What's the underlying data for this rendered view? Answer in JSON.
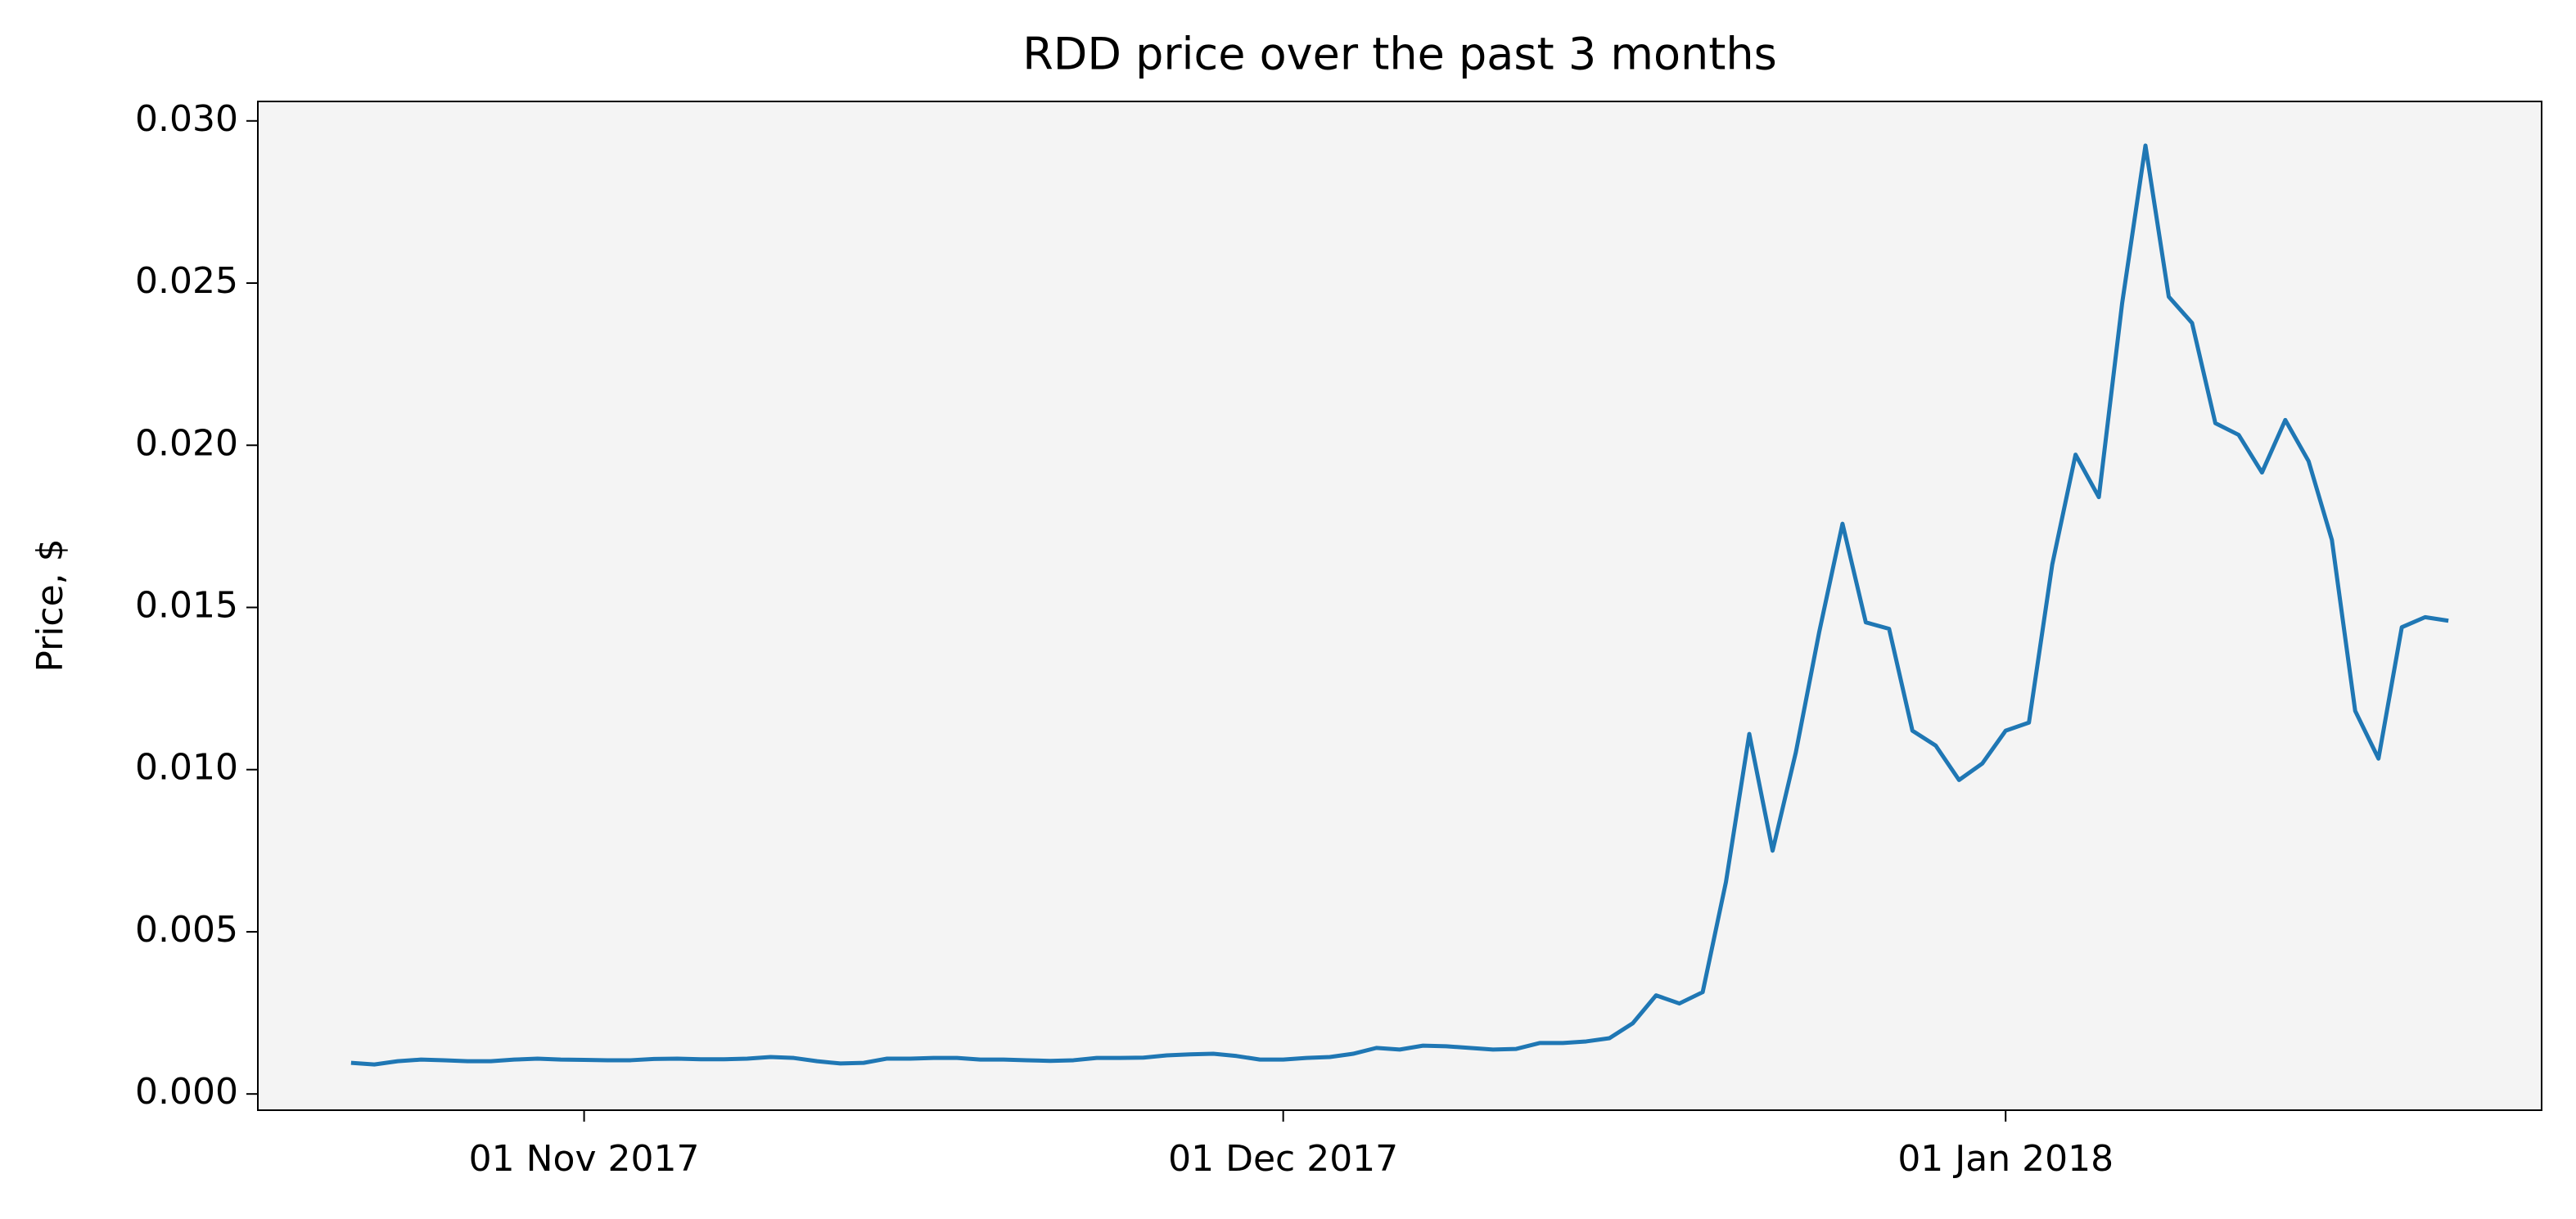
{
  "chart_data": {
    "type": "line",
    "title": "RDD price over the past 3 months",
    "y_label": "Price, $",
    "x": [
      "2017-10-22",
      "2017-10-23",
      "2017-10-24",
      "2017-10-25",
      "2017-10-26",
      "2017-10-27",
      "2017-10-28",
      "2017-10-29",
      "2017-10-30",
      "2017-10-31",
      "2017-11-01",
      "2017-11-02",
      "2017-11-03",
      "2017-11-04",
      "2017-11-05",
      "2017-11-06",
      "2017-11-07",
      "2017-11-08",
      "2017-11-09",
      "2017-11-10",
      "2017-11-11",
      "2017-11-12",
      "2017-11-13",
      "2017-11-14",
      "2017-11-15",
      "2017-11-16",
      "2017-11-17",
      "2017-11-18",
      "2017-11-19",
      "2017-11-20",
      "2017-11-21",
      "2017-11-22",
      "2017-11-23",
      "2017-11-24",
      "2017-11-25",
      "2017-11-26",
      "2017-11-27",
      "2017-11-28",
      "2017-11-29",
      "2017-11-30",
      "2017-12-01",
      "2017-12-02",
      "2017-12-03",
      "2017-12-04",
      "2017-12-05",
      "2017-12-06",
      "2017-12-07",
      "2017-12-08",
      "2017-12-09",
      "2017-12-10",
      "2017-12-11",
      "2017-12-12",
      "2017-12-13",
      "2017-12-14",
      "2017-12-15",
      "2017-12-16",
      "2017-12-17",
      "2017-12-18",
      "2017-12-19",
      "2017-12-20",
      "2017-12-21",
      "2017-12-22",
      "2017-12-23",
      "2017-12-24",
      "2017-12-25",
      "2017-12-26",
      "2017-12-27",
      "2017-12-28",
      "2017-12-29",
      "2017-12-30",
      "2017-12-31",
      "2018-01-01",
      "2018-01-02",
      "2018-01-03",
      "2018-01-04",
      "2018-01-05",
      "2018-01-06",
      "2018-01-07",
      "2018-01-08",
      "2018-01-09",
      "2018-01-10",
      "2018-01-11",
      "2018-01-12",
      "2018-01-13",
      "2018-01-14",
      "2018-01-15",
      "2018-01-16",
      "2018-01-17",
      "2018-01-18",
      "2018-01-19",
      "2018-01-20"
    ],
    "values": [
      0.00096,
      0.00091,
      0.00101,
      0.00106,
      0.00104,
      0.00101,
      0.00101,
      0.00106,
      0.00109,
      0.00106,
      0.00105,
      0.00104,
      0.00104,
      0.00108,
      0.00109,
      0.00107,
      0.00107,
      0.00109,
      0.00114,
      0.00111,
      0.00101,
      0.00094,
      0.00096,
      0.00109,
      0.00109,
      0.00111,
      0.00111,
      0.00106,
      0.00106,
      0.00104,
      0.00102,
      0.00104,
      0.00111,
      0.00111,
      0.00112,
      0.00119,
      0.00122,
      0.00124,
      0.00117,
      0.00106,
      0.00106,
      0.00111,
      0.00114,
      0.00124,
      0.00142,
      0.00137,
      0.00149,
      0.00147,
      0.00142,
      0.00137,
      0.00139,
      0.00157,
      0.00157,
      0.00162,
      0.00172,
      0.00218,
      0.00304,
      0.00279,
      0.00314,
      0.00654,
      0.0111,
      0.0075,
      0.01054,
      0.01424,
      0.01758,
      0.01454,
      0.01434,
      0.0112,
      0.01074,
      0.00968,
      0.01019,
      0.0112,
      0.01145,
      0.01632,
      0.01971,
      0.0184,
      0.02438,
      0.02924,
      0.02458,
      0.02377,
      0.02068,
      0.02032,
      0.01916,
      0.02078,
      0.01951,
      0.01708,
      0.01181,
      0.01034,
      0.01439,
      0.0147,
      0.01459
    ],
    "color": "#1f77b4",
    "xlim": [
      "2017-10-18",
      "2018-01-24"
    ],
    "xticks": [
      {
        "value": "2017-11-01",
        "label": "01 Nov 2017"
      },
      {
        "value": "2017-12-01",
        "label": "01 Dec 2017"
      },
      {
        "value": "2018-01-01",
        "label": "01 Jan 2018"
      }
    ],
    "ylim": [
      -0.0005,
      0.0306
    ],
    "yticks": [
      {
        "value": 0,
        "label": "0.000"
      },
      0.005,
      {
        "value": 0.01,
        "label": "0.010"
      },
      0.015,
      {
        "value": 0.02,
        "label": "0.020"
      },
      0.025,
      {
        "value": 0.03,
        "label": "0.030"
      }
    ],
    "background": "#f4f4f4"
  }
}
